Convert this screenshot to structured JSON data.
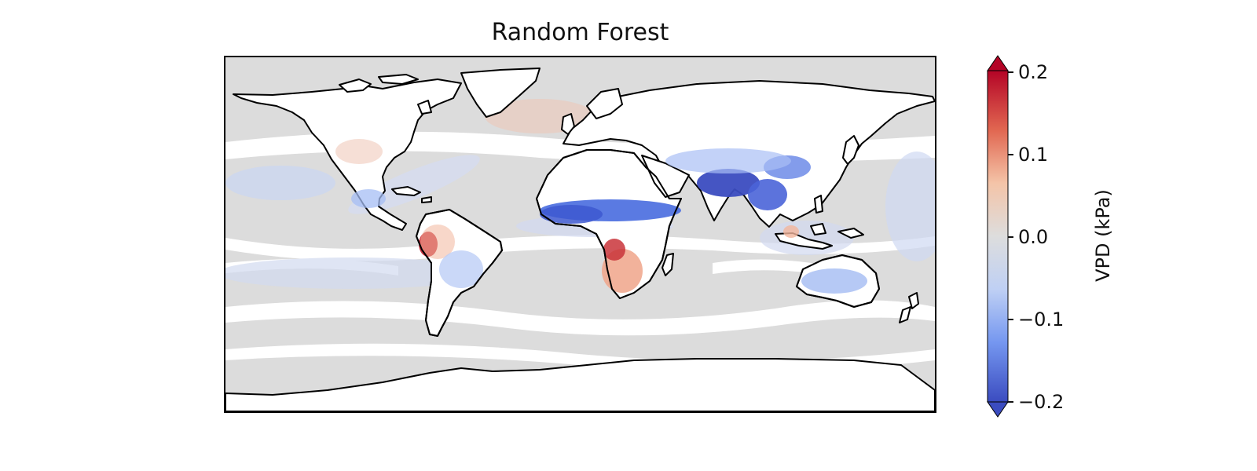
{
  "title": "Random Forest",
  "colorbar": {
    "label": "VPD (kPa)",
    "colormap": "coolwarm",
    "min": -0.2,
    "max": 0.2,
    "extend": "both",
    "ticks": [
      {
        "value": 0.2,
        "label": "0.2"
      },
      {
        "value": 0.1,
        "label": "0.1"
      },
      {
        "value": 0.0,
        "label": "0.0"
      },
      {
        "value": -0.1,
        "label": "−0.1"
      },
      {
        "value": -0.2,
        "label": "−0.2"
      }
    ],
    "colors": {
      "low": "#3b4cc0",
      "mid": "#dddddd",
      "high": "#b40426"
    }
  },
  "map": {
    "projection": "plate carree",
    "extent_lon": [
      -180,
      180
    ],
    "extent_lat": [
      -90,
      90
    ],
    "missing_color": "#ffffff",
    "coastline_color": "#000000",
    "regions": [
      {
        "name": "india-indochina",
        "value": -0.2
      },
      {
        "name": "sahel",
        "value": -0.2
      },
      {
        "name": "east-china",
        "value": -0.14
      },
      {
        "name": "australia",
        "value": -0.1
      },
      {
        "name": "central-south-america",
        "value": -0.08
      },
      {
        "name": "western-amazon",
        "value": 0.2
      },
      {
        "name": "southern-africa",
        "value": 0.15
      },
      {
        "name": "central-africa",
        "value": 0.19
      },
      {
        "name": "north-atlantic",
        "value": 0.04
      },
      {
        "name": "tropical-ocean",
        "value": -0.05
      }
    ]
  }
}
